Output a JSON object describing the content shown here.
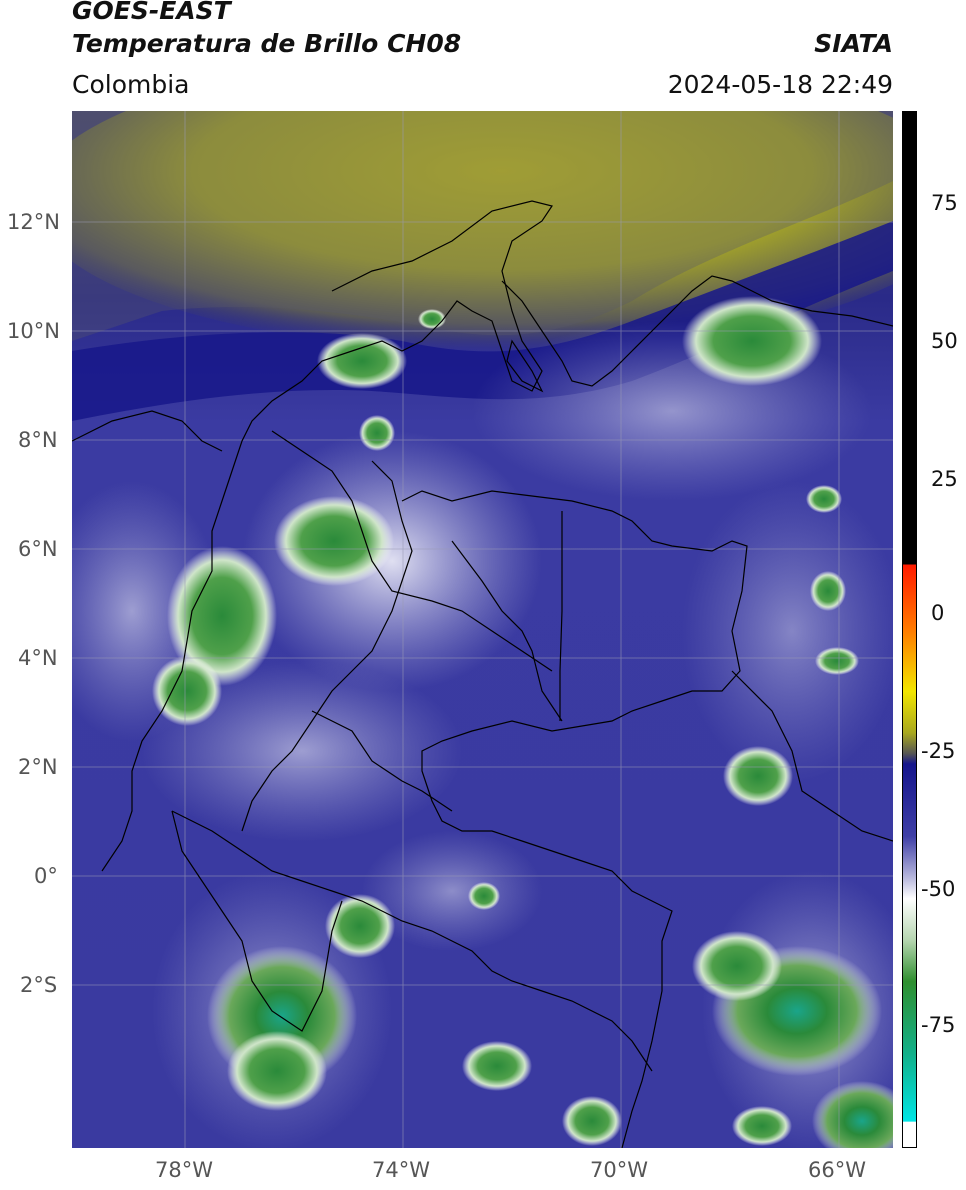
{
  "header": {
    "title_line1": "GOES-EAST",
    "title_line2": "Temperatura de Brillo CH08",
    "brand": "SIATA",
    "region": "Colombia",
    "timestamp": "2024-05-18 22:49"
  },
  "map": {
    "lat_labels": [
      "12°N",
      "10°N",
      "8°N",
      "6°N",
      "4°N",
      "2°N",
      "0°",
      "2°S"
    ],
    "lon_labels": [
      "78°W",
      "74°W",
      "70°W",
      "66°W"
    ]
  },
  "colorbar": {
    "tick_labels": [
      "75",
      "50",
      "25",
      "0",
      "-25",
      "-50",
      "-75"
    ],
    "colors": {
      "warm": "#000000",
      "red": "#ff2a00",
      "orange": "#ff9a00",
      "yellow": "#f2e600",
      "olive": "#a8a81e",
      "navy": "#15158c",
      "blue": "#3f3fa6",
      "lightblue": "#b8b8dd",
      "white": "#ffffff",
      "green": "#2f8f2f",
      "teal": "#12b08a",
      "cyan": "#00e5e5"
    }
  }
}
